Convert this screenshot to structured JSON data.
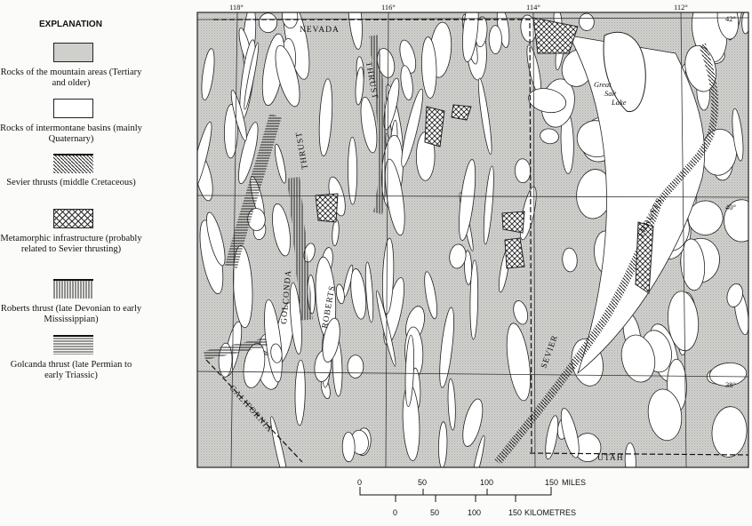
{
  "legend": {
    "title": "EXPLANATION",
    "items": [
      {
        "label": "Rocks of the mountain areas (Tertiary and older)",
        "pattern": "stipple-gray"
      },
      {
        "label": "Rocks of intermontane basins (mainly Quaternary)",
        "pattern": "blank-white"
      },
      {
        "label": "Sevier thrusts (middle Cretaceous)",
        "pattern": "diagonal-hatch"
      },
      {
        "label": "Metamorphic infrastructure (probably related to Sevier thrusting)",
        "pattern": "crosshatch"
      },
      {
        "label": "Roberts thrust (late Devonian to early Mississippian)",
        "pattern": "vertical-lines"
      },
      {
        "label": "Golcanda thrust (late Permian to early Triassic)",
        "pattern": "horizontal-lines"
      }
    ]
  },
  "map": {
    "longitudes": [
      "118°",
      "116°",
      "114°",
      "112°"
    ],
    "latitudes": [
      "42°",
      "40°",
      "38°"
    ],
    "labels": {
      "nevada": "NEVADA",
      "utah": "UTAH",
      "california": "CALIFORNIA",
      "great_salt_lake": [
        "Great",
        "Salt",
        "Lake"
      ],
      "thrust_north": "THRUST",
      "thrust_west": "THRUST",
      "golconda": "GOLCONDA",
      "roberts": "ROBERTS",
      "sevier": "SEVIER",
      "thrusts_east": "THRUSTS"
    },
    "colors": {
      "mountain": "#c9c9c6",
      "basin": "#ffffff",
      "line": "#222222"
    }
  },
  "scale": {
    "miles": {
      "ticks": [
        "0",
        "50",
        "100",
        "150"
      ],
      "unit": "MILES"
    },
    "kilometres": {
      "ticks": [
        "0",
        "50",
        "100",
        "150"
      ],
      "unit": "KILOMETRES"
    }
  }
}
